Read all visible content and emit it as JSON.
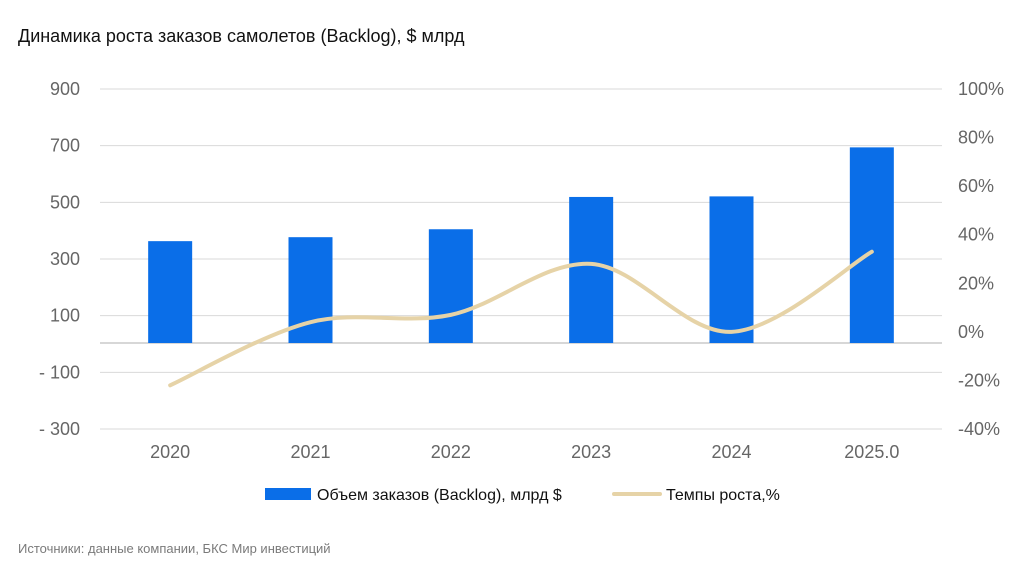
{
  "header": {
    "title": "Динамика роста заказов самолетов (Backlog), $ млрд"
  },
  "footer": {
    "source": "Источники: данные компании, БКС Мир инвестиций"
  },
  "colors": {
    "bar": "#0a6ee8",
    "line": "#e6d3a7",
    "grid": "#d9d9d9",
    "axis": "#bfbfbf"
  },
  "chart_data": {
    "type": "bar",
    "categories": [
      "2020",
      "2021",
      "2022",
      "2023",
      "2024",
      "2025.0"
    ],
    "series": [
      {
        "name": "Объем заказов (Backlog), млрд $",
        "type": "bar",
        "axis": "left",
        "values": [
          363,
          377,
          405,
          519,
          521,
          694
        ]
      },
      {
        "name": "Темпы роста,%",
        "type": "line",
        "smooth": true,
        "axis": "right",
        "values": [
          -22,
          4,
          7,
          28,
          0,
          33
        ]
      }
    ],
    "y_left": {
      "ticks": [
        900,
        700,
        500,
        300,
        100,
        -100,
        -300
      ],
      "tick_labels": [
        "900",
        "700",
        "500",
        "300",
        "100",
        "- 100",
        "- 300"
      ],
      "range": [
        -300,
        900
      ]
    },
    "y_right": {
      "ticks": [
        100,
        80,
        60,
        40,
        20,
        0,
        -20,
        -40
      ],
      "tick_labels": [
        "100%",
        "80%",
        "60%",
        "40%",
        "20%",
        "0%",
        "-20%",
        "-40%"
      ],
      "range": [
        -40,
        100
      ]
    },
    "grid": true,
    "legend_position": "bottom"
  }
}
